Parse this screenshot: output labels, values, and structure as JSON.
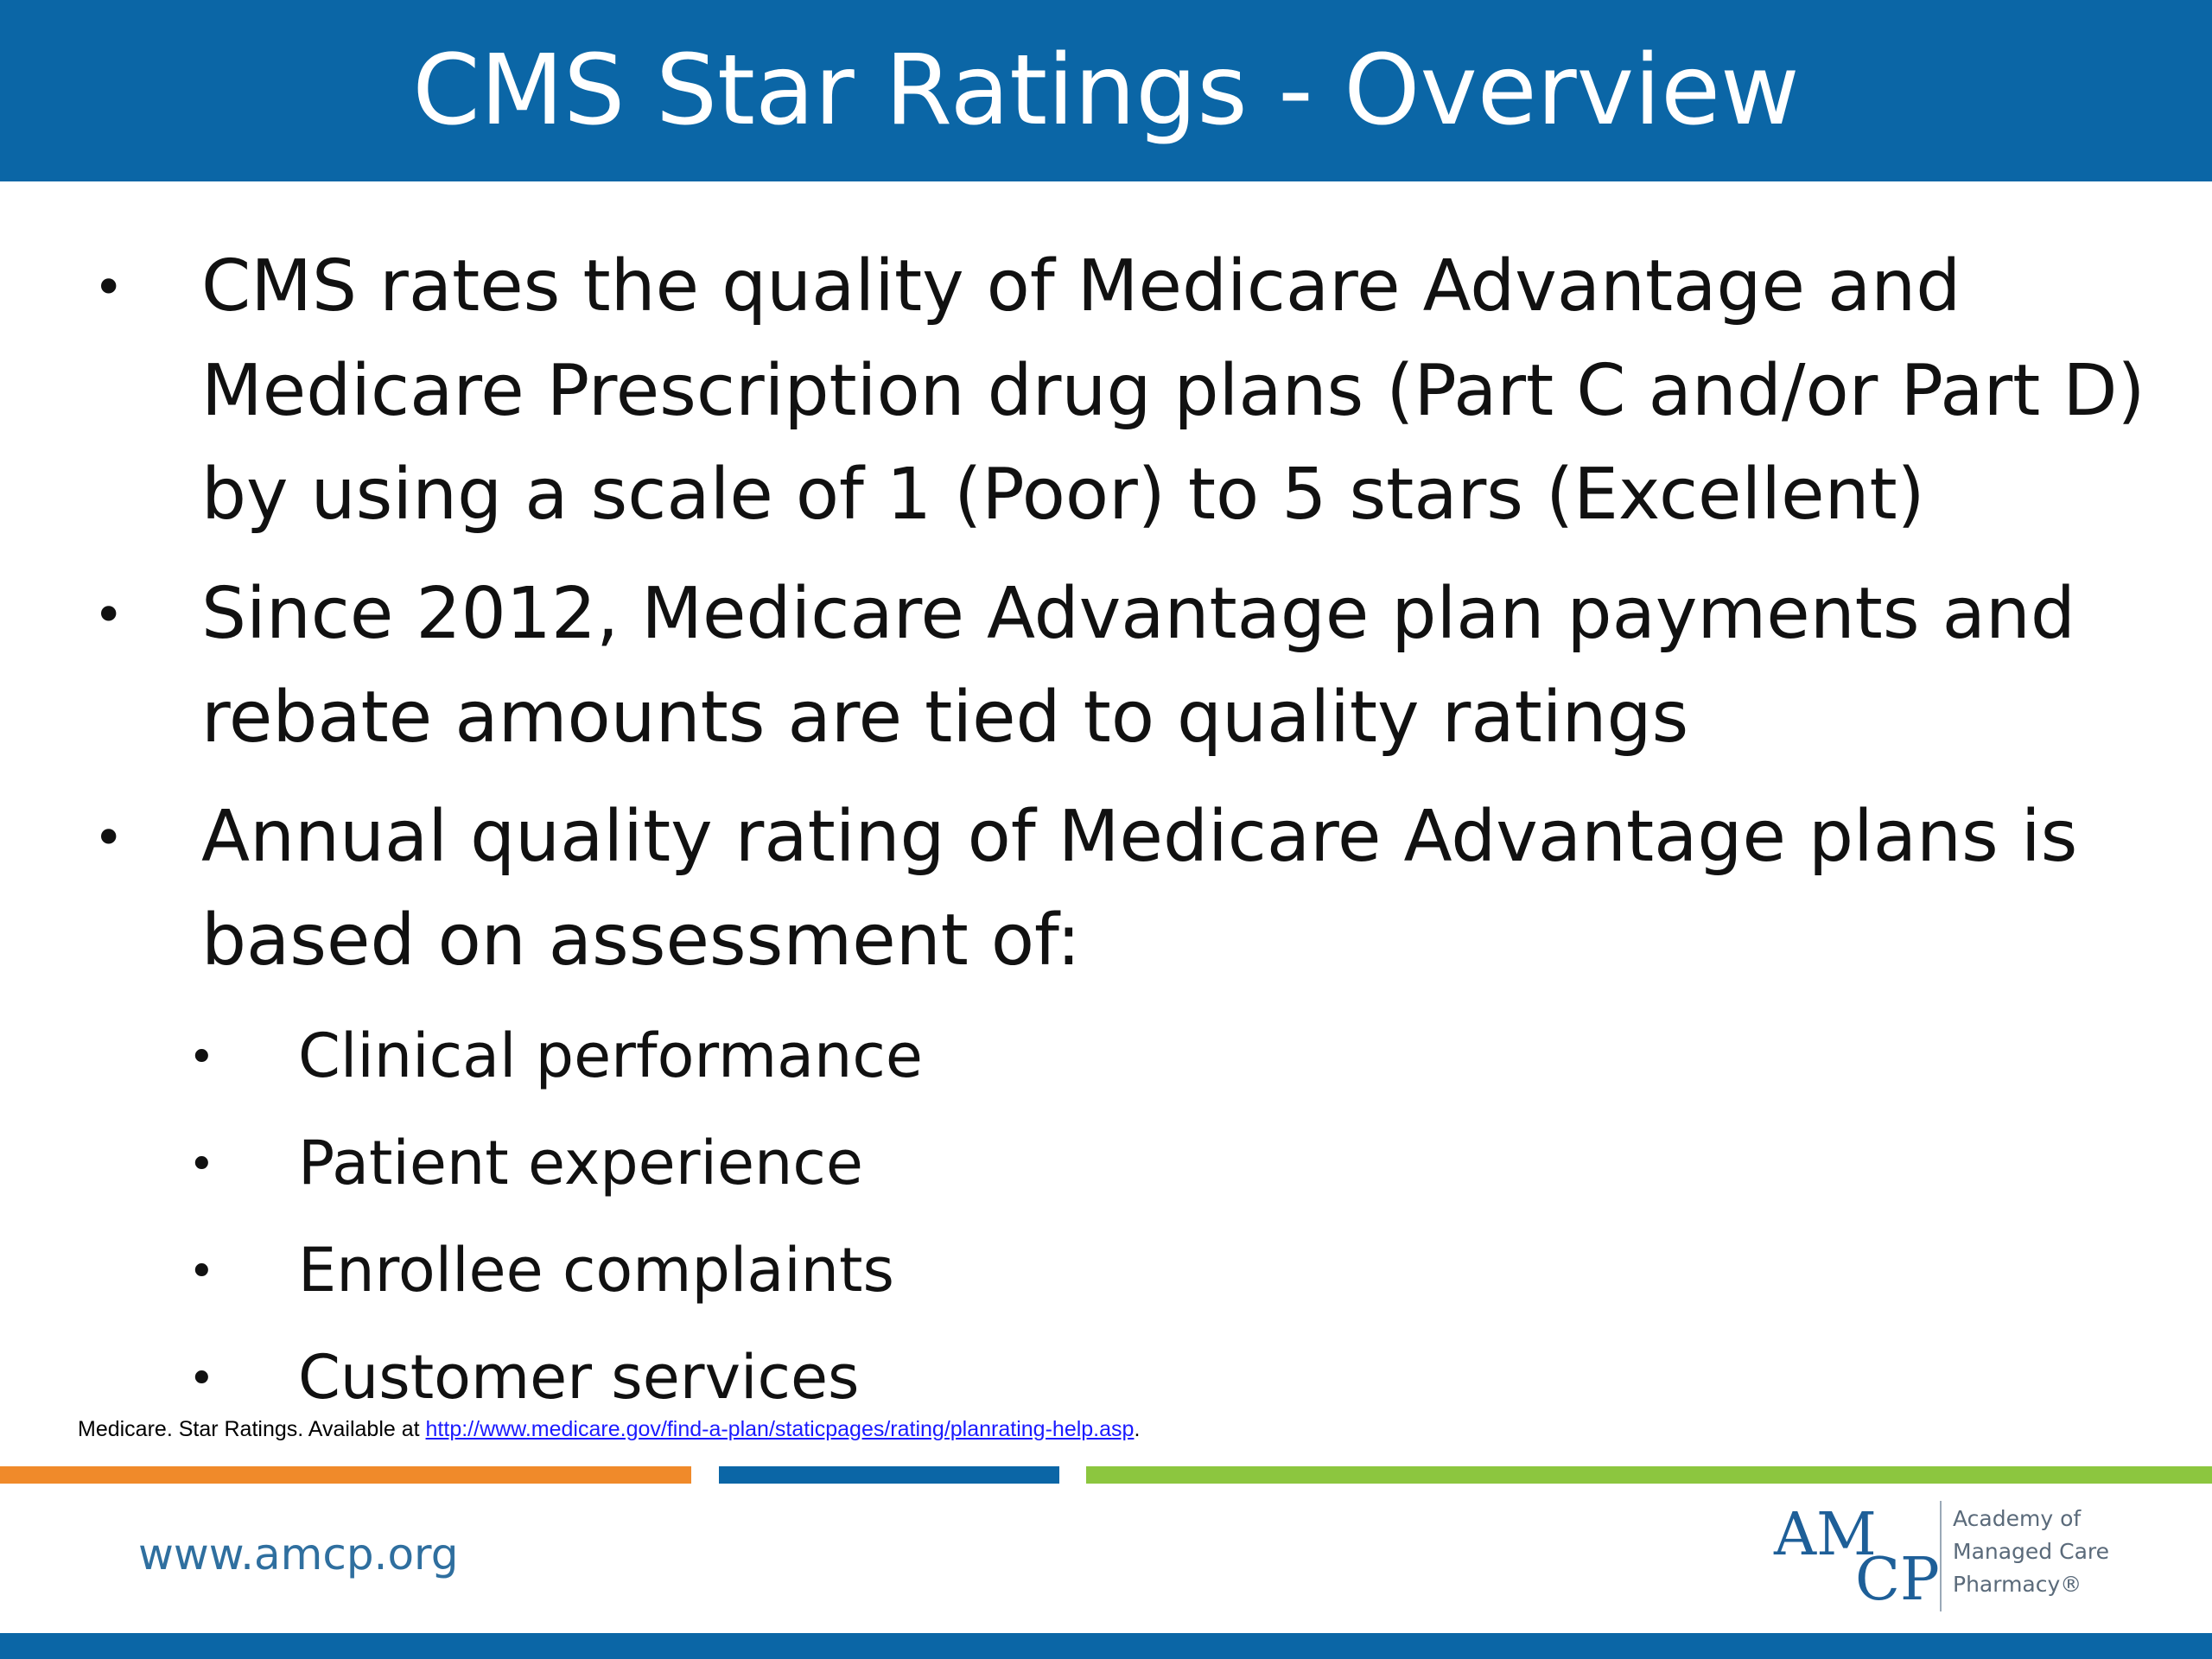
{
  "slide": {
    "title": "CMS Star Ratings - Overview",
    "bullets": [
      {
        "lines": [
          "CMS rates the quality of Medicare Advantage and",
          "Medicare Prescription drug plans (Part C and/or Part D)",
          "by using a scale of 1 (Poor) to 5 stars (Excellent)"
        ]
      },
      {
        "lines": [
          "Since 2012, Medicare Advantage plan payments and",
          "rebate amounts are tied to quality ratings"
        ]
      },
      {
        "lines": [
          "Annual quality rating of Medicare Advantage plans is",
          "based on assessment of:"
        ]
      }
    ],
    "sub_bullets": [
      "Clinical performance",
      "Patient experience",
      "Enrollee complaints",
      "Customer services"
    ],
    "bullet_glyph": "•"
  },
  "citation": {
    "prefix": "Medicare. Star Ratings.  Available at ",
    "link_text": "http://www.medicare.gov/find-a-plan/staticpages/rating/planrating-help.asp",
    "suffix": "."
  },
  "footer": {
    "url": "www.amcp.org",
    "logo": {
      "letters_top": "AM",
      "letters_bottom": "CP",
      "line1": "Academy of",
      "line2": "Managed Care",
      "line3": "Pharmacy®"
    }
  },
  "colors": {
    "header_blue": "#0b66a6",
    "stripe_orange": "#f08a2a",
    "stripe_blue": "#0b66a6",
    "stripe_green": "#8cc63f",
    "link_blue": "#1a1aff"
  }
}
